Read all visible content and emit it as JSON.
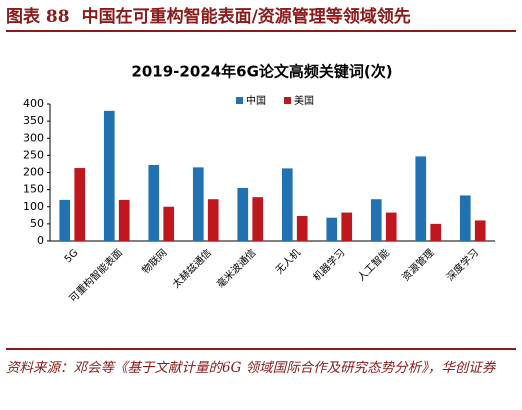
{
  "caption": {
    "figure": "图表 88",
    "title": "中国在可重构智能表面/资源管理等领域领先"
  },
  "source": "资料来源：邓会等《基于文献计量的6G 领域国际合作及研究态势分析》，华创证券",
  "chart_data": {
    "type": "bar",
    "title": "2019-2024年6G论文高频关键词(次)",
    "categories": [
      "5G",
      "可重构智能表面",
      "物联网",
      "太赫兹通信",
      "毫米波通信",
      "无人机",
      "机器学习",
      "人工智能",
      "资源管理",
      "深度学习"
    ],
    "series": [
      {
        "name": "中国",
        "color": "#2271b3",
        "values": [
          120,
          380,
          222,
          215,
          155,
          212,
          68,
          122,
          247,
          133
        ]
      },
      {
        "name": "美国",
        "color": "#c0161d",
        "values": [
          213,
          120,
          100,
          122,
          128,
          73,
          83,
          83,
          50,
          60
        ]
      }
    ],
    "ylim": [
      0,
      400
    ],
    "yticks": [
      0,
      50,
      100,
      150,
      200,
      250,
      300,
      350,
      400
    ],
    "legend": "top"
  }
}
